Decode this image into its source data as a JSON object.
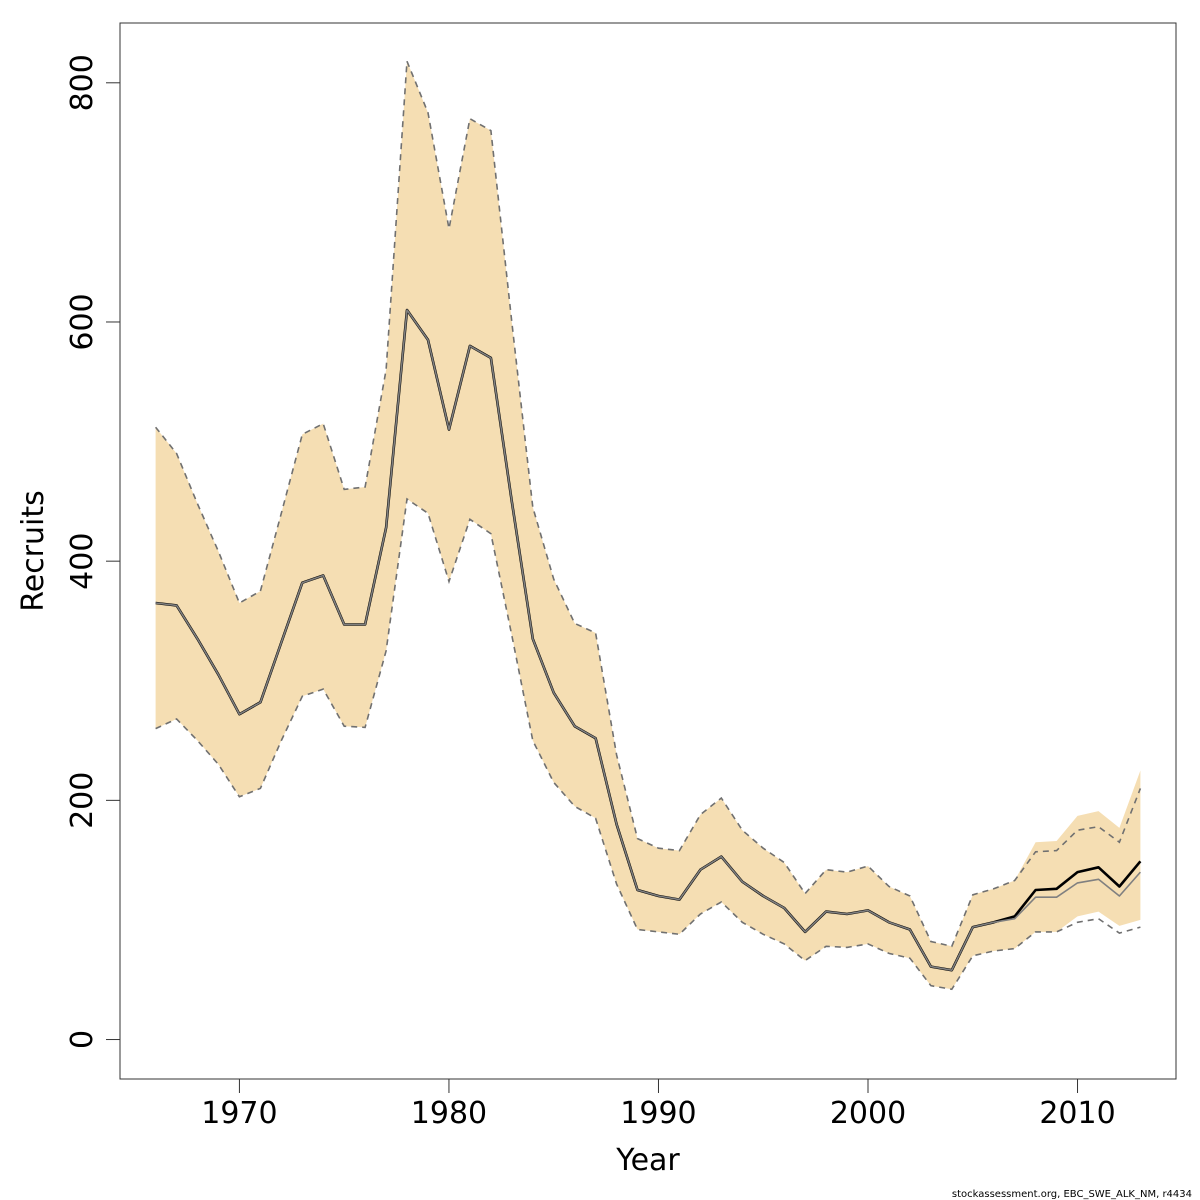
{
  "chart_data": {
    "type": "line",
    "title": "",
    "xlabel": "Year",
    "ylabel": "Recruits",
    "xlim": [
      1964.3,
      2014.7
    ],
    "ylim": [
      -33,
      850
    ],
    "xticks": [
      1970,
      1980,
      1990,
      2000,
      2010
    ],
    "yticks": [
      0,
      200,
      400,
      600,
      800
    ],
    "grid": false,
    "legend": "none",
    "footer": "stockassessment.org, EBC_SWE_ALK_NM, r4434",
    "colors": {
      "band_fill": "#f5deb3",
      "estimate_line": "#000000",
      "previous_line": "#808080",
      "bounds_line": "#707070",
      "axis": "#333333"
    },
    "x": [
      1966,
      1967,
      1968,
      1969,
      1970,
      1971,
      1972,
      1973,
      1974,
      1975,
      1976,
      1977,
      1978,
      1979,
      1980,
      1981,
      1982,
      1983,
      1984,
      1985,
      1986,
      1987,
      1988,
      1989,
      1990,
      1991,
      1992,
      1993,
      1994,
      1995,
      1996,
      1997,
      1998,
      1999,
      2000,
      2001,
      2002,
      2003,
      2004,
      2005,
      2006,
      2007,
      2008,
      2009,
      2010,
      2011,
      2012,
      2013
    ],
    "series": [
      {
        "values": [
          365,
          363,
          335,
          305,
          272,
          282,
          332,
          382,
          388,
          347,
          347,
          428,
          610,
          585,
          510,
          580,
          570,
          450,
          335,
          290,
          262,
          252,
          180,
          125,
          120,
          117,
          142,
          153,
          132,
          120,
          110,
          90,
          107,
          105,
          108,
          98,
          92,
          61,
          58,
          94,
          98,
          103,
          125,
          126,
          140,
          144,
          128,
          149
        ]
      },
      {
        "values": [
          365,
          363,
          335,
          305,
          272,
          282,
          332,
          382,
          388,
          347,
          347,
          428,
          610,
          585,
          510,
          580,
          570,
          450,
          335,
          290,
          262,
          252,
          180,
          125,
          120,
          117,
          142,
          153,
          132,
          120,
          110,
          90,
          107,
          105,
          108,
          98,
          92,
          61,
          58,
          94,
          98,
          101,
          119,
          119,
          131,
          134,
          120,
          140
        ]
      },
      {
        "values": [
          512,
          490,
          448,
          408,
          365,
          375,
          440,
          506,
          515,
          460,
          462,
          560,
          818,
          775,
          678,
          770,
          760,
          600,
          445,
          385,
          348,
          340,
          238,
          168,
          160,
          158,
          188,
          202,
          175,
          160,
          148,
          122,
          142,
          140,
          145,
          128,
          120,
          82,
          78,
          121,
          126,
          133,
          157,
          158,
          175,
          178,
          165,
          210
        ]
      },
      {
        "values": [
          260,
          268,
          250,
          230,
          203,
          210,
          250,
          287,
          293,
          262,
          261,
          325,
          452,
          440,
          383,
          435,
          423,
          338,
          250,
          215,
          195,
          185,
          130,
          92,
          90,
          88,
          105,
          115,
          98,
          88,
          80,
          66,
          78,
          77,
          80,
          72,
          68,
          45,
          42,
          70,
          74,
          76,
          90,
          90,
          98,
          101,
          89,
          94
        ]
      }
    ],
    "band_upper": [
      512,
      490,
      448,
      408,
      365,
      375,
      440,
      506,
      515,
      460,
      462,
      560,
      818,
      775,
      678,
      770,
      760,
      600,
      445,
      385,
      348,
      340,
      238,
      168,
      160,
      158,
      188,
      202,
      175,
      160,
      148,
      122,
      142,
      140,
      145,
      128,
      120,
      82,
      78,
      121,
      126,
      133,
      165,
      166,
      187,
      191,
      177,
      225
    ],
    "band_lower": [
      260,
      268,
      250,
      230,
      203,
      210,
      250,
      287,
      293,
      262,
      261,
      325,
      452,
      440,
      383,
      435,
      423,
      338,
      250,
      215,
      195,
      185,
      130,
      92,
      90,
      88,
      105,
      115,
      98,
      88,
      80,
      66,
      78,
      77,
      80,
      72,
      68,
      45,
      42,
      70,
      74,
      76,
      90,
      90,
      103,
      107,
      95,
      100
    ]
  }
}
